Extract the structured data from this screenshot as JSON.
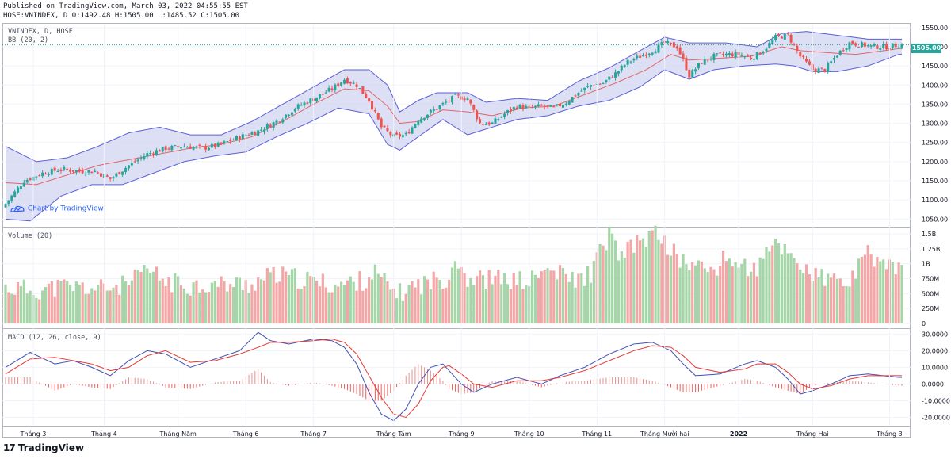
{
  "header": {
    "line1": "Published on TradingView.com, March 03, 2022 04:55:55 EST",
    "line2": "HOSE:VNINDEX, D O:1492.48 H:1505.00 L:1485.52 C:1505.00"
  },
  "panes": {
    "price_title": "VNINDEX, D, HOSE",
    "bb_title": "BB (20, 2)",
    "volume_title": "Volume (20)",
    "macd_title": "MACD (12, 26, close, 9)"
  },
  "last_price_label": "1505.00",
  "watermark": "Chart by TradingView",
  "footer_logo": "TradingView",
  "footer_mark": "17",
  "colors": {
    "up": "#26a69a",
    "down": "#ef5350",
    "band_fill": "#d1d4f0",
    "band_line": "#5b5fd6",
    "basis": "#e06666",
    "macd": "#3f51b5",
    "signal": "#e53935",
    "vol_up": "#a5d6a7",
    "vol_down": "#f4a6a6"
  },
  "chart_data": [
    {
      "type": "candlestick",
      "title": "VNINDEX, D, HOSE",
      "y_ticks": [
        "1550.00",
        "1500.00",
        "1450.00",
        "1400.00",
        "1350.00",
        "1300.00",
        "1250.00",
        "1200.00",
        "1150.00",
        "1100.00",
        "1050.00"
      ],
      "ylim": [
        1030,
        1560
      ],
      "x_ticks": [
        "Tháng 3",
        "Tháng 4",
        "Tháng Năm",
        "Tháng 6",
        "Tháng 7",
        "Tháng Tám",
        "Tháng 9",
        "Tháng 10",
        "Tháng 11",
        "Tháng Mười hai",
        "2022",
        "Tháng Hai",
        "Tháng 3"
      ],
      "close_path": [
        [
          0,
          1090
        ],
        [
          6,
          1150
        ],
        [
          12,
          1170
        ],
        [
          18,
          1180
        ],
        [
          24,
          1175
        ],
        [
          29,
          1175
        ],
        [
          34,
          1155
        ],
        [
          40,
          1190
        ],
        [
          46,
          1220
        ],
        [
          52,
          1235
        ],
        [
          58,
          1240
        ],
        [
          64,
          1235
        ],
        [
          70,
          1245
        ],
        [
          76,
          1265
        ],
        [
          82,
          1280
        ],
        [
          88,
          1305
        ],
        [
          94,
          1340
        ],
        [
          100,
          1365
        ],
        [
          106,
          1390
        ],
        [
          110,
          1415
        ],
        [
          114,
          1400
        ],
        [
          118,
          1360
        ],
        [
          122,
          1290
        ],
        [
          126,
          1265
        ],
        [
          130,
          1270
        ],
        [
          134,
          1310
        ],
        [
          138,
          1330
        ],
        [
          142,
          1350
        ],
        [
          146,
          1370
        ],
        [
          150,
          1365
        ],
        [
          154,
          1300
        ],
        [
          158,
          1300
        ],
        [
          162,
          1325
        ],
        [
          166,
          1345
        ],
        [
          170,
          1340
        ],
        [
          174,
          1345
        ],
        [
          178,
          1340
        ],
        [
          182,
          1355
        ],
        [
          186,
          1380
        ],
        [
          190,
          1400
        ],
        [
          194,
          1405
        ],
        [
          198,
          1430
        ],
        [
          202,
          1460
        ],
        [
          206,
          1475
        ],
        [
          210,
          1490
        ],
        [
          214,
          1510
        ],
        [
          218,
          1500
        ],
        [
          220,
          1465
        ],
        [
          222,
          1425
        ],
        [
          226,
          1460
        ],
        [
          230,
          1475
        ],
        [
          234,
          1480
        ],
        [
          238,
          1480
        ],
        [
          242,
          1470
        ],
        [
          246,
          1490
        ],
        [
          250,
          1525
        ],
        [
          254,
          1530
        ],
        [
          258,
          1475
        ],
        [
          262,
          1440
        ],
        [
          266,
          1440
        ],
        [
          270,
          1480
        ],
        [
          274,
          1510
        ],
        [
          278,
          1505
        ],
        [
          282,
          1500
        ],
        [
          286,
          1500
        ],
        [
          290,
          1505
        ]
      ],
      "bb_upper_path": [
        [
          0,
          1240
        ],
        [
          10,
          1200
        ],
        [
          20,
          1210
        ],
        [
          30,
          1240
        ],
        [
          40,
          1275
        ],
        [
          50,
          1290
        ],
        [
          60,
          1270
        ],
        [
          70,
          1270
        ],
        [
          80,
          1305
        ],
        [
          90,
          1350
        ],
        [
          100,
          1395
        ],
        [
          110,
          1440
        ],
        [
          118,
          1440
        ],
        [
          124,
          1400
        ],
        [
          128,
          1330
        ],
        [
          134,
          1360
        ],
        [
          140,
          1380
        ],
        [
          150,
          1380
        ],
        [
          156,
          1355
        ],
        [
          166,
          1365
        ],
        [
          176,
          1360
        ],
        [
          186,
          1410
        ],
        [
          196,
          1445
        ],
        [
          206,
          1490
        ],
        [
          214,
          1525
        ],
        [
          222,
          1510
        ],
        [
          234,
          1510
        ],
        [
          244,
          1500
        ],
        [
          252,
          1535
        ],
        [
          260,
          1540
        ],
        [
          270,
          1530
        ],
        [
          280,
          1520
        ],
        [
          290,
          1520
        ]
      ],
      "bb_lower_path": [
        [
          0,
          1050
        ],
        [
          8,
          1045
        ],
        [
          18,
          1110
        ],
        [
          28,
          1140
        ],
        [
          38,
          1140
        ],
        [
          48,
          1170
        ],
        [
          58,
          1200
        ],
        [
          68,
          1215
        ],
        [
          78,
          1225
        ],
        [
          88,
          1265
        ],
        [
          98,
          1300
        ],
        [
          108,
          1340
        ],
        [
          118,
          1325
        ],
        [
          124,
          1245
        ],
        [
          128,
          1230
        ],
        [
          134,
          1265
        ],
        [
          142,
          1310
        ],
        [
          150,
          1270
        ],
        [
          156,
          1285
        ],
        [
          166,
          1310
        ],
        [
          176,
          1320
        ],
        [
          186,
          1345
        ],
        [
          196,
          1360
        ],
        [
          206,
          1395
        ],
        [
          214,
          1440
        ],
        [
          222,
          1415
        ],
        [
          230,
          1440
        ],
        [
          240,
          1450
        ],
        [
          250,
          1455
        ],
        [
          256,
          1450
        ],
        [
          262,
          1435
        ],
        [
          270,
          1435
        ],
        [
          280,
          1450
        ],
        [
          290,
          1480
        ]
      ],
      "bb_basis_path": [
        [
          0,
          1145
        ],
        [
          10,
          1140
        ],
        [
          20,
          1165
        ],
        [
          30,
          1190
        ],
        [
          40,
          1205
        ],
        [
          50,
          1220
        ],
        [
          60,
          1235
        ],
        [
          70,
          1245
        ],
        [
          80,
          1265
        ],
        [
          90,
          1305
        ],
        [
          100,
          1350
        ],
        [
          110,
          1390
        ],
        [
          118,
          1385
        ],
        [
          124,
          1345
        ],
        [
          128,
          1300
        ],
        [
          134,
          1305
        ],
        [
          142,
          1335
        ],
        [
          150,
          1330
        ],
        [
          158,
          1320
        ],
        [
          168,
          1340
        ],
        [
          178,
          1345
        ],
        [
          188,
          1375
        ],
        [
          198,
          1405
        ],
        [
          208,
          1440
        ],
        [
          216,
          1480
        ],
        [
          222,
          1465
        ],
        [
          232,
          1470
        ],
        [
          242,
          1475
        ],
        [
          252,
          1500
        ],
        [
          258,
          1490
        ],
        [
          266,
          1485
        ],
        [
          276,
          1480
        ],
        [
          290,
          1495
        ]
      ],
      "last_close": 1505.0
    },
    {
      "type": "bar",
      "title": "Volume (20)",
      "y_ticks": [
        "1.5B",
        "1.25B",
        "1B",
        "750M",
        "500M",
        "250M",
        "0"
      ],
      "ylim": [
        0,
        1500000000
      ],
      "volume_path": [
        [
          0,
          600
        ],
        [
          10,
          560
        ],
        [
          20,
          620
        ],
        [
          30,
          580
        ],
        [
          40,
          650
        ],
        [
          46,
          900
        ],
        [
          52,
          700
        ],
        [
          60,
          640
        ],
        [
          70,
          650
        ],
        [
          80,
          660
        ],
        [
          86,
          800
        ],
        [
          92,
          780
        ],
        [
          100,
          700
        ],
        [
          108,
          640
        ],
        [
          116,
          720
        ],
        [
          120,
          850
        ],
        [
          124,
          620
        ],
        [
          128,
          500
        ],
        [
          132,
          620
        ],
        [
          138,
          700
        ],
        [
          144,
          780
        ],
        [
          146,
          1150
        ],
        [
          150,
          750
        ],
        [
          160,
          740
        ],
        [
          170,
          700
        ],
        [
          176,
          900
        ],
        [
          180,
          820
        ],
        [
          186,
          720
        ],
        [
          190,
          850
        ],
        [
          196,
          1500
        ],
        [
          200,
          1100
        ],
        [
          206,
          1400
        ],
        [
          212,
          1500
        ],
        [
          218,
          1100
        ],
        [
          224,
          950
        ],
        [
          230,
          900
        ],
        [
          234,
          1100
        ],
        [
          240,
          950
        ],
        [
          244,
          900
        ],
        [
          250,
          1350
        ],
        [
          254,
          1200
        ],
        [
          258,
          1000
        ],
        [
          262,
          800
        ],
        [
          268,
          720
        ],
        [
          274,
          680
        ],
        [
          280,
          1150
        ],
        [
          290,
          900
        ]
      ]
    },
    {
      "type": "line",
      "title": "MACD (12, 26, close, 9)",
      "y_ticks": [
        "30.0000",
        "20.0000",
        "10.0000",
        "0.0000",
        "-10.0000",
        "-20.0000"
      ],
      "ylim": [
        -25,
        33
      ],
      "series": [
        {
          "role": "macd",
          "path": [
            [
              0,
              10
            ],
            [
              8,
              19
            ],
            [
              16,
              12
            ],
            [
              22,
              14
            ],
            [
              28,
              10
            ],
            [
              34,
              5
            ],
            [
              40,
              14
            ],
            [
              46,
              20
            ],
            [
              52,
              18
            ],
            [
              60,
              10
            ],
            [
              68,
              15
            ],
            [
              76,
              20
            ],
            [
              82,
              31
            ],
            [
              86,
              26
            ],
            [
              92,
              24
            ],
            [
              100,
              27
            ],
            [
              106,
              26
            ],
            [
              110,
              22
            ],
            [
              114,
              12
            ],
            [
              118,
              -5
            ],
            [
              122,
              -18
            ],
            [
              126,
              -22
            ],
            [
              130,
              -15
            ],
            [
              134,
              0
            ],
            [
              138,
              10
            ],
            [
              142,
              12
            ],
            [
              144,
              8
            ],
            [
              148,
              0
            ],
            [
              152,
              -5
            ],
            [
              158,
              0
            ],
            [
              166,
              4
            ],
            [
              174,
              0
            ],
            [
              180,
              5
            ],
            [
              188,
              10
            ],
            [
              196,
              18
            ],
            [
              204,
              24
            ],
            [
              210,
              25
            ],
            [
              216,
              20
            ],
            [
              220,
              12
            ],
            [
              224,
              5
            ],
            [
              232,
              6
            ],
            [
              240,
              12
            ],
            [
              244,
              14
            ],
            [
              250,
              10
            ],
            [
              254,
              3
            ],
            [
              258,
              -6
            ],
            [
              262,
              -4
            ],
            [
              268,
              0
            ],
            [
              274,
              5
            ],
            [
              280,
              6
            ],
            [
              290,
              4
            ]
          ]
        },
        {
          "role": "signal",
          "path": [
            [
              0,
              6
            ],
            [
              8,
              15
            ],
            [
              16,
              16
            ],
            [
              22,
              14
            ],
            [
              28,
              12
            ],
            [
              34,
              8
            ],
            [
              40,
              10
            ],
            [
              46,
              17
            ],
            [
              52,
              20
            ],
            [
              60,
              13
            ],
            [
              68,
              14
            ],
            [
              76,
              18
            ],
            [
              82,
              22
            ],
            [
              86,
              25
            ],
            [
              92,
              25
            ],
            [
              100,
              26
            ],
            [
              106,
              27
            ],
            [
              110,
              25
            ],
            [
              114,
              18
            ],
            [
              118,
              5
            ],
            [
              122,
              -8
            ],
            [
              126,
              -18
            ],
            [
              130,
              -20
            ],
            [
              134,
              -12
            ],
            [
              138,
              2
            ],
            [
              142,
              10
            ],
            [
              144,
              11
            ],
            [
              148,
              6
            ],
            [
              152,
              0
            ],
            [
              158,
              -2
            ],
            [
              166,
              2
            ],
            [
              174,
              2
            ],
            [
              180,
              4
            ],
            [
              188,
              8
            ],
            [
              196,
              14
            ],
            [
              204,
              20
            ],
            [
              210,
              23
            ],
            [
              216,
              22
            ],
            [
              220,
              17
            ],
            [
              224,
              10
            ],
            [
              232,
              7
            ],
            [
              240,
              9
            ],
            [
              244,
              12
            ],
            [
              250,
              12
            ],
            [
              254,
              7
            ],
            [
              258,
              0
            ],
            [
              262,
              -3
            ],
            [
              268,
              -1
            ],
            [
              274,
              3
            ],
            [
              280,
              5
            ],
            [
              290,
              5
            ]
          ]
        }
      ]
    }
  ]
}
